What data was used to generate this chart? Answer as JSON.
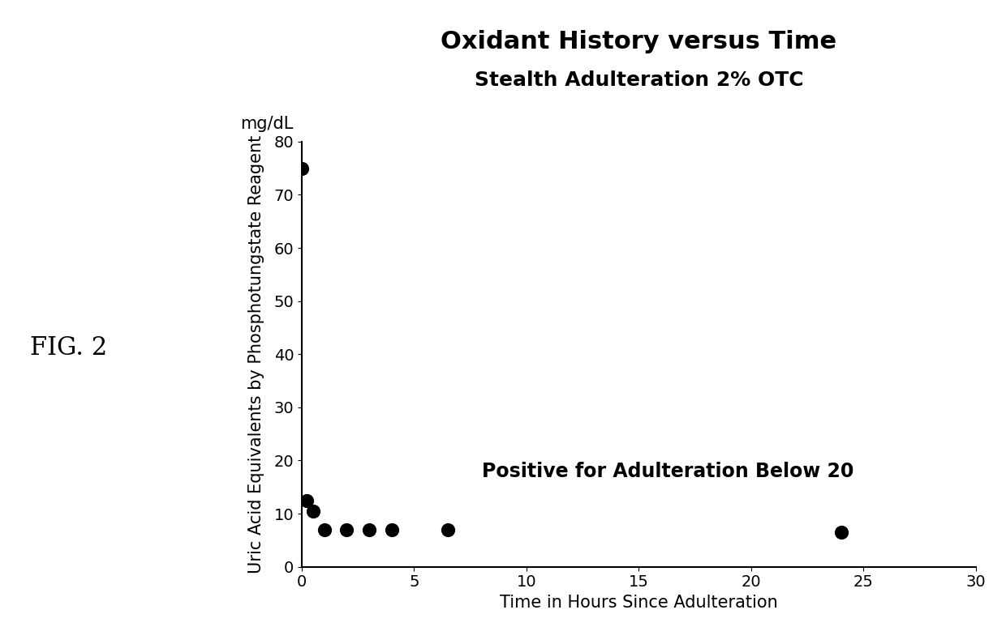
{
  "title_line1": "Oxidant History versus Time",
  "title_line2": "Stealth Adulteration 2% OTC",
  "xlabel": "Time in Hours Since Adulteration",
  "ylabel": "Uric Acid Equivalents by Phosphotungstate Reagent",
  "ylabel2": "mg/dL",
  "annotation": "Positive for Adulteration Below 20",
  "fig_label": "FIG. 2",
  "x_data": [
    0.0,
    0.2,
    0.5,
    1.0,
    2.0,
    3.0,
    4.0,
    6.5,
    24.0
  ],
  "y_data": [
    75.0,
    12.5,
    10.5,
    7.0,
    7.0,
    7.0,
    7.0,
    7.0,
    6.5
  ],
  "xlim": [
    0,
    30
  ],
  "ylim": [
    0,
    80
  ],
  "xticks": [
    0,
    5,
    10,
    15,
    20,
    25,
    30
  ],
  "yticks": [
    0,
    10,
    20,
    30,
    40,
    50,
    60,
    70,
    80
  ],
  "marker_color": "#000000",
  "marker_size": 130,
  "background_color": "#ffffff",
  "title_fontsize": 22,
  "subtitle_fontsize": 18,
  "axis_label_fontsize": 15,
  "tick_fontsize": 14,
  "annotation_fontsize": 17,
  "fig_label_fontsize": 22
}
